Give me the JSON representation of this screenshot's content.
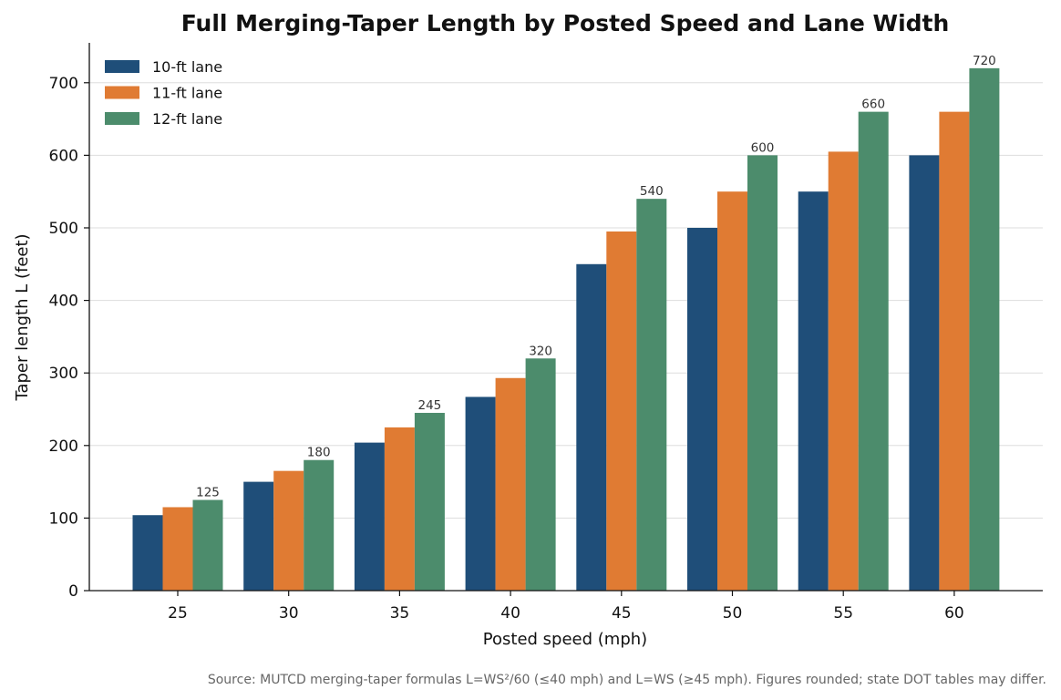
{
  "chart_data": {
    "type": "bar",
    "title": "Full Merging-Taper Length by Posted Speed and Lane Width",
    "xlabel": "Posted speed (mph)",
    "ylabel": "Taper length L (feet)",
    "categories": [
      "25",
      "30",
      "35",
      "40",
      "45",
      "50",
      "55",
      "60"
    ],
    "series": [
      {
        "name": "10-ft lane",
        "color": "#1f4e79",
        "values": [
          104,
          150,
          204,
          267,
          450,
          500,
          550,
          600
        ]
      },
      {
        "name": "11-ft lane",
        "color": "#e07b33",
        "values": [
          115,
          165,
          225,
          293,
          495,
          550,
          605,
          660
        ]
      },
      {
        "name": "12-ft lane",
        "color": "#4c8c6c",
        "values": [
          125,
          180,
          245,
          320,
          540,
          600,
          660,
          720
        ]
      }
    ],
    "data_labels": {
      "series": "12-ft lane",
      "values": [
        "125",
        "180",
        "245",
        "320",
        "540",
        "600",
        "660",
        "720"
      ]
    },
    "ylim": [
      0,
      755
    ],
    "yticks": [
      "0",
      "100",
      "200",
      "300",
      "400",
      "500",
      "600",
      "700"
    ],
    "grid": "horizontal",
    "legend_position": "top-left",
    "source_note": "Source: MUTCD merging-taper formulas L=WS²/60 (≤40 mph) and L=WS (≥45 mph). Figures rounded; state DOT tables may differ."
  }
}
